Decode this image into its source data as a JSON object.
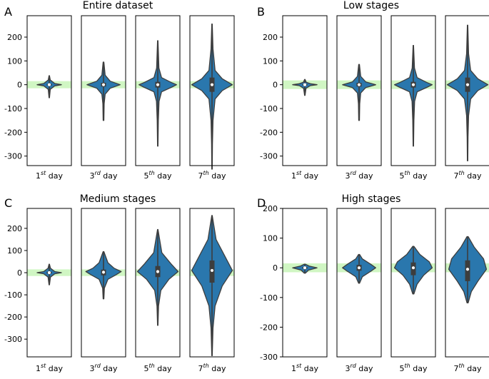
{
  "chart_data": [
    {
      "type": "violin",
      "panel_label": "A",
      "title": "Entire dataset",
      "ylim": [
        -340,
        290
      ],
      "yticks": [
        200,
        100,
        0,
        -100,
        -200,
        -300
      ],
      "band": [
        -15,
        15
      ],
      "band_color": "#c8f5b8",
      "violin_color": "#2a77ad",
      "categories": [
        {
          "label": "1",
          "sup": "st",
          "suffix": " day",
          "min": -55,
          "max": 38,
          "q1": -3,
          "median": 0,
          "q3": 3,
          "width": 0.55,
          "profile": [
            [
              -55,
              0.02
            ],
            [
              -20,
              0.08
            ],
            [
              -5,
              0.45
            ],
            [
              0,
              1
            ],
            [
              5,
              0.45
            ],
            [
              20,
              0.08
            ],
            [
              38,
              0.02
            ]
          ]
        },
        {
          "label": "3",
          "sup": "rd",
          "suffix": " day",
          "min": -150,
          "max": 95,
          "q1": -8,
          "median": 0,
          "q3": 8,
          "width": 0.75,
          "profile": [
            [
              -150,
              0.02
            ],
            [
              -80,
              0.04
            ],
            [
              -40,
              0.1
            ],
            [
              -15,
              0.4
            ],
            [
              0,
              1
            ],
            [
              15,
              0.4
            ],
            [
              40,
              0.1
            ],
            [
              95,
              0.02
            ]
          ]
        },
        {
          "label": "5",
          "sup": "th",
          "suffix": " day",
          "min": -258,
          "max": 185,
          "q1": -12,
          "median": 0,
          "q3": 12,
          "width": 0.85,
          "profile": [
            [
              -258,
              0.01
            ],
            [
              -150,
              0.03
            ],
            [
              -70,
              0.07
            ],
            [
              -30,
              0.2
            ],
            [
              -10,
              0.75
            ],
            [
              0,
              1
            ],
            [
              10,
              0.7
            ],
            [
              30,
              0.2
            ],
            [
              70,
              0.06
            ],
            [
              185,
              0.01
            ]
          ]
        },
        {
          "label": "7",
          "sup": "th",
          "suffix": " day",
          "min": -355,
          "max": 255,
          "q1": -30,
          "median": 0,
          "q3": 30,
          "width": 0.92,
          "profile": [
            [
              -355,
              0.01
            ],
            [
              -250,
              0.02
            ],
            [
              -150,
              0.05
            ],
            [
              -60,
              0.15
            ],
            [
              -25,
              0.5
            ],
            [
              0,
              1
            ],
            [
              25,
              0.5
            ],
            [
              60,
              0.15
            ],
            [
              150,
              0.05
            ],
            [
              255,
              0.01
            ]
          ]
        }
      ]
    },
    {
      "type": "violin",
      "panel_label": "B",
      "title": "Low stages",
      "ylim": [
        -340,
        290
      ],
      "yticks": [
        200,
        100,
        0,
        -100,
        -200,
        -300
      ],
      "band": [
        -18,
        18
      ],
      "band_color": "#c8f5b8",
      "violin_color": "#2a77ad",
      "categories": [
        {
          "label": "1",
          "sup": "st",
          "suffix": " day",
          "min": -45,
          "max": 22,
          "q1": -3,
          "median": 0,
          "q3": 3,
          "width": 0.55,
          "profile": [
            [
              -45,
              0.02
            ],
            [
              -15,
              0.1
            ],
            [
              -4,
              0.45
            ],
            [
              0,
              1
            ],
            [
              4,
              0.45
            ],
            [
              10,
              0.12
            ],
            [
              22,
              0.02
            ]
          ]
        },
        {
          "label": "3",
          "sup": "rd",
          "suffix": " day",
          "min": -150,
          "max": 85,
          "q1": -8,
          "median": 0,
          "q3": 8,
          "width": 0.75,
          "profile": [
            [
              -150,
              0.02
            ],
            [
              -80,
              0.04
            ],
            [
              -35,
              0.1
            ],
            [
              -12,
              0.4
            ],
            [
              0,
              1
            ],
            [
              12,
              0.4
            ],
            [
              35,
              0.1
            ],
            [
              85,
              0.02
            ]
          ]
        },
        {
          "label": "5",
          "sup": "th",
          "suffix": " day",
          "min": -258,
          "max": 165,
          "q1": -12,
          "median": 0,
          "q3": 12,
          "width": 0.85,
          "profile": [
            [
              -258,
              0.01
            ],
            [
              -150,
              0.03
            ],
            [
              -70,
              0.07
            ],
            [
              -30,
              0.2
            ],
            [
              -10,
              0.75
            ],
            [
              0,
              1
            ],
            [
              10,
              0.7
            ],
            [
              30,
              0.2
            ],
            [
              70,
              0.06
            ],
            [
              165,
              0.01
            ]
          ]
        },
        {
          "label": "7",
          "sup": "th",
          "suffix": " day",
          "min": -320,
          "max": 250,
          "q1": -30,
          "median": 0,
          "q3": 30,
          "width": 0.92,
          "profile": [
            [
              -320,
              0.01
            ],
            [
              -220,
              0.02
            ],
            [
              -130,
              0.05
            ],
            [
              -60,
              0.15
            ],
            [
              -25,
              0.5
            ],
            [
              0,
              1
            ],
            [
              25,
              0.5
            ],
            [
              60,
              0.15
            ],
            [
              130,
              0.05
            ],
            [
              250,
              0.01
            ]
          ]
        }
      ]
    },
    {
      "type": "violin",
      "panel_label": "C",
      "title": "Medium stages",
      "ylim": [
        -380,
        290
      ],
      "yticks": [
        200,
        100,
        0,
        -100,
        -200,
        -300
      ],
      "band": [
        -15,
        15
      ],
      "band_color": "#c8f5b8",
      "violin_color": "#2a77ad",
      "categories": [
        {
          "label": "1",
          "sup": "st",
          "suffix": " day",
          "min": -55,
          "max": 38,
          "q1": -4,
          "median": 0,
          "q3": 4,
          "width": 0.55,
          "profile": [
            [
              -55,
              0.02
            ],
            [
              -20,
              0.1
            ],
            [
              -5,
              0.45
            ],
            [
              0,
              1
            ],
            [
              5,
              0.45
            ],
            [
              20,
              0.1
            ],
            [
              38,
              0.02
            ]
          ]
        },
        {
          "label": "3",
          "sup": "rd",
          "suffix": " day",
          "min": -118,
          "max": 95,
          "q1": -12,
          "median": 2,
          "q3": 14,
          "width": 0.8,
          "profile": [
            [
              -118,
              0.02
            ],
            [
              -70,
              0.05
            ],
            [
              -30,
              0.25
            ],
            [
              -10,
              0.7
            ],
            [
              5,
              1
            ],
            [
              20,
              0.6
            ],
            [
              45,
              0.25
            ],
            [
              95,
              0.02
            ]
          ]
        },
        {
          "label": "5",
          "sup": "th",
          "suffix": " day",
          "min": -238,
          "max": 195,
          "q1": -20,
          "median": 5,
          "q3": 30,
          "width": 0.92,
          "profile": [
            [
              -238,
              0.01
            ],
            [
              -150,
              0.04
            ],
            [
              -80,
              0.15
            ],
            [
              -30,
              0.55
            ],
            [
              5,
              1
            ],
            [
              40,
              0.65
            ],
            [
              90,
              0.2
            ],
            [
              195,
              0.01
            ]
          ]
        },
        {
          "label": "7",
          "sup": "th",
          "suffix": " day",
          "min": -375,
          "max": 258,
          "q1": -45,
          "median": 10,
          "q3": 55,
          "width": 0.92,
          "profile": [
            [
              -375,
              0.01
            ],
            [
              -250,
              0.05
            ],
            [
              -150,
              0.15
            ],
            [
              -60,
              0.5
            ],
            [
              10,
              1
            ],
            [
              80,
              0.6
            ],
            [
              150,
              0.2
            ],
            [
              258,
              0.01
            ]
          ]
        }
      ]
    },
    {
      "type": "violin",
      "panel_label": "D",
      "title": "High stages",
      "ylim": [
        -300,
        200
      ],
      "yticks": [
        200,
        100,
        0,
        -100,
        -200,
        -300
      ],
      "band": [
        -15,
        15
      ],
      "band_color": "#c8f5b8",
      "violin_color": "#2a77ad",
      "categories": [
        {
          "label": "1",
          "sup": "st",
          "suffix": " day",
          "min": -18,
          "max": 12,
          "q1": -3,
          "median": 0,
          "q3": 3,
          "width": 0.55,
          "profile": [
            [
              -18,
              0.05
            ],
            [
              -8,
              0.3
            ],
            [
              0,
              1
            ],
            [
              6,
              0.35
            ],
            [
              12,
              0.05
            ]
          ]
        },
        {
          "label": "3",
          "sup": "rd",
          "suffix": " day",
          "min": -52,
          "max": 45,
          "q1": -10,
          "median": 0,
          "q3": 10,
          "width": 0.75,
          "profile": [
            [
              -52,
              0.03
            ],
            [
              -30,
              0.2
            ],
            [
              -10,
              0.75
            ],
            [
              0,
              1
            ],
            [
              12,
              0.7
            ],
            [
              30,
              0.2
            ],
            [
              45,
              0.03
            ]
          ]
        },
        {
          "label": "5",
          "sup": "th",
          "suffix": " day",
          "min": -88,
          "max": 72,
          "q1": -25,
          "median": 0,
          "q3": 18,
          "width": 0.85,
          "profile": [
            [
              -88,
              0.03
            ],
            [
              -55,
              0.2
            ],
            [
              -25,
              0.55
            ],
            [
              0,
              1
            ],
            [
              20,
              0.85
            ],
            [
              45,
              0.35
            ],
            [
              72,
              0.03
            ]
          ]
        },
        {
          "label": "7",
          "sup": "th",
          "suffix": " day",
          "min": -118,
          "max": 105,
          "q1": -45,
          "median": -5,
          "q3": 25,
          "width": 0.85,
          "profile": [
            [
              -118,
              0.03
            ],
            [
              -80,
              0.2
            ],
            [
              -45,
              0.55
            ],
            [
              -5,
              1
            ],
            [
              30,
              0.85
            ],
            [
              70,
              0.35
            ],
            [
              105,
              0.03
            ]
          ]
        }
      ]
    }
  ]
}
